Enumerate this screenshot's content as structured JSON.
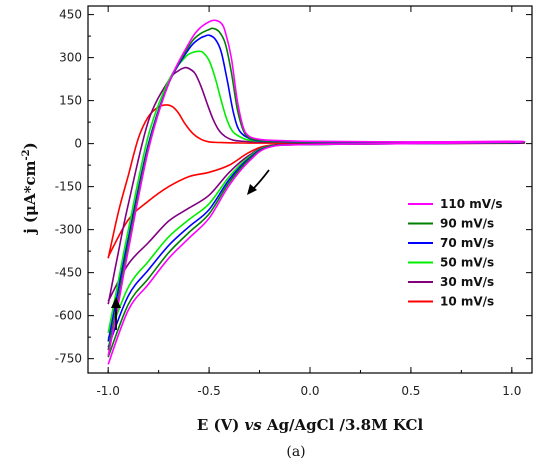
{
  "chart_data": {
    "type": "line",
    "title": "",
    "xlabel": {
      "main": "E (V) ",
      "italic": "vs",
      "rest": " Ag/AgCl /3.8M KCl"
    },
    "ylabel": {
      "main": "j (",
      "mu": "μ",
      "unit": "A*cm",
      "sup": "-2",
      "close": ")"
    },
    "xlim": [
      -1.1,
      1.1
    ],
    "ylim": [
      -800,
      480
    ],
    "xticks": [
      -1.0,
      -0.5,
      0.0,
      0.5,
      1.0
    ],
    "xtick_labels": [
      "-1.0",
      "-0.5",
      "0.0",
      "0.5",
      "1.0"
    ],
    "yticks": [
      450,
      300,
      150,
      0,
      -150,
      -300,
      -450,
      -600,
      -750
    ],
    "ytick_labels": [
      "450",
      "300",
      "150",
      "0",
      "-150",
      "-300",
      "-450",
      "-600",
      "-750"
    ],
    "grid": false,
    "legend_position": "middle-right",
    "caption": "(a)",
    "series": [
      {
        "name": "110 mV/s",
        "color": "#ff00ff",
        "x": [
          -1.0,
          -0.95,
          -0.9,
          -0.8,
          -0.7,
          -0.6,
          -0.55,
          -0.5,
          -0.47,
          -0.44,
          -0.42,
          -0.39,
          -0.36,
          -0.33,
          -0.3,
          -0.25,
          -0.2,
          0.0,
          0.5,
          1.0,
          1.0,
          0.5,
          0.0,
          -0.2,
          -0.3,
          -0.4,
          -0.5,
          -0.6,
          -0.7,
          -0.8,
          -0.9,
          -1.0
        ],
        "y": [
          -740,
          -560,
          -370,
          -20,
          210,
          350,
          400,
          425,
          430,
          420,
          390,
          300,
          150,
          55,
          25,
          15,
          12,
          8,
          6,
          8,
          5,
          0,
          -3,
          -12,
          -60,
          -145,
          -260,
          -330,
          -400,
          -490,
          -580,
          -770
        ]
      },
      {
        "name": "90 mV/s",
        "color": "#008000",
        "x": [
          -1.0,
          -0.95,
          -0.9,
          -0.8,
          -0.7,
          -0.6,
          -0.55,
          -0.5,
          -0.48,
          -0.45,
          -0.42,
          -0.39,
          -0.36,
          -0.33,
          -0.3,
          -0.25,
          -0.2,
          0.0,
          0.5,
          1.0,
          1.0,
          0.5,
          0.0,
          -0.2,
          -0.3,
          -0.4,
          -0.5,
          -0.6,
          -0.7,
          -0.8,
          -0.9,
          -1.0
        ],
        "y": [
          -720,
          -540,
          -350,
          -10,
          210,
          340,
          380,
          398,
          402,
          390,
          350,
          250,
          120,
          45,
          20,
          12,
          10,
          7,
          5,
          7,
          4,
          0,
          -3,
          -11,
          -55,
          -135,
          -245,
          -310,
          -380,
          -470,
          -560,
          -745
        ]
      },
      {
        "name": "70 mV/s",
        "color": "#0000ff",
        "x": [
          -1.0,
          -0.95,
          -0.9,
          -0.8,
          -0.7,
          -0.6,
          -0.55,
          -0.52,
          -0.5,
          -0.47,
          -0.44,
          -0.41,
          -0.38,
          -0.35,
          -0.3,
          -0.25,
          -0.2,
          0.0,
          0.5,
          1.0,
          1.0,
          0.5,
          0.0,
          -0.2,
          -0.3,
          -0.4,
          -0.5,
          -0.6,
          -0.7,
          -0.8,
          -0.9,
          -1.0
        ],
        "y": [
          -690,
          -510,
          -330,
          0,
          210,
          330,
          365,
          375,
          378,
          365,
          320,
          220,
          110,
          45,
          18,
          10,
          9,
          6,
          5,
          6,
          3,
          0,
          -3,
          -10,
          -50,
          -125,
          -230,
          -290,
          -355,
          -440,
          -530,
          -710
        ]
      },
      {
        "name": "50 mV/s",
        "color": "#00ee00",
        "x": [
          -1.0,
          -0.95,
          -0.9,
          -0.8,
          -0.7,
          -0.62,
          -0.58,
          -0.55,
          -0.53,
          -0.5,
          -0.47,
          -0.44,
          -0.41,
          -0.38,
          -0.33,
          -0.28,
          -0.2,
          0.0,
          0.5,
          1.0,
          1.0,
          0.5,
          0.0,
          -0.2,
          -0.3,
          -0.4,
          -0.5,
          -0.6,
          -0.7,
          -0.8,
          -0.9,
          -1.0
        ],
        "y": [
          -660,
          -480,
          -300,
          30,
          220,
          300,
          318,
          322,
          318,
          290,
          230,
          150,
          80,
          40,
          18,
          10,
          8,
          5,
          4,
          5,
          3,
          0,
          -3,
          -9,
          -45,
          -115,
          -210,
          -265,
          -325,
          -410,
          -500,
          -680
        ]
      },
      {
        "name": "30 mV/s",
        "color": "#800080",
        "x": [
          -1.0,
          -0.95,
          -0.9,
          -0.8,
          -0.7,
          -0.65,
          -0.62,
          -0.6,
          -0.57,
          -0.54,
          -0.51,
          -0.48,
          -0.45,
          -0.42,
          -0.38,
          -0.33,
          -0.25,
          0.0,
          0.5,
          1.0,
          1.0,
          0.5,
          0.0,
          -0.2,
          -0.3,
          -0.4,
          -0.5,
          -0.6,
          -0.7,
          -0.8,
          -0.9,
          -1.0
        ],
        "y": [
          -560,
          -380,
          -210,
          80,
          220,
          255,
          265,
          262,
          245,
          200,
          140,
          85,
          45,
          25,
          12,
          8,
          6,
          4,
          3,
          4,
          2,
          0,
          -2,
          -8,
          -40,
          -100,
          -180,
          -225,
          -270,
          -345,
          -420,
          -550
        ]
      },
      {
        "name": "10 mV/s",
        "color": "#ff0000",
        "x": [
          -1.0,
          -0.95,
          -0.9,
          -0.85,
          -0.8,
          -0.75,
          -0.71,
          -0.68,
          -0.65,
          -0.62,
          -0.58,
          -0.54,
          -0.5,
          -0.45,
          -0.4,
          -0.3,
          -0.2,
          0.0,
          0.5,
          1.0,
          1.0,
          0.5,
          0.0,
          -0.2,
          -0.3,
          -0.4,
          -0.5,
          -0.6,
          -0.7,
          -0.8,
          -0.9,
          -1.0
        ],
        "y": [
          -400,
          -240,
          -110,
          20,
          95,
          128,
          135,
          128,
          105,
          70,
          35,
          15,
          6,
          4,
          3,
          2,
          2,
          2,
          2,
          2,
          1,
          0,
          -2,
          -6,
          -30,
          -75,
          -100,
          -115,
          -150,
          -200,
          -265,
          -395
        ]
      }
    ]
  }
}
